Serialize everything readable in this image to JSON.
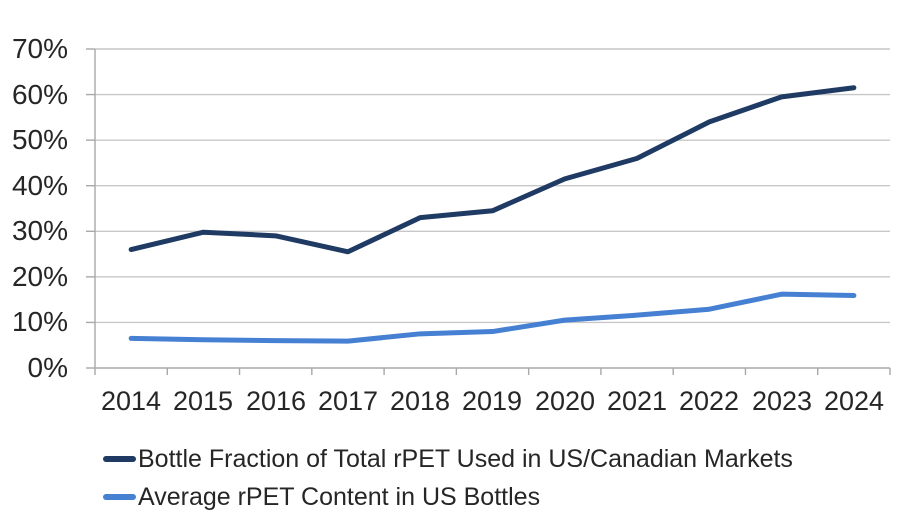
{
  "chart_data": {
    "type": "line",
    "title": "",
    "xlabel": "",
    "ylabel": "",
    "grid": true,
    "legend_position": "bottom-left",
    "ylim": [
      0,
      70
    ],
    "ytick_step": 10,
    "ytick_labels": [
      "0%",
      "10%",
      "20%",
      "30%",
      "40%",
      "50%",
      "60%",
      "70%"
    ],
    "categories": [
      "2014",
      "2015",
      "2016",
      "2017",
      "2018",
      "2019",
      "2020",
      "2021",
      "2022",
      "2023",
      "2024"
    ],
    "series": [
      {
        "name": "Bottle Fraction of Total rPET Used in US/Canadian Markets",
        "color": "#1f3a63",
        "values": [
          26,
          29.8,
          29,
          25.5,
          33,
          34.5,
          41.5,
          46,
          54,
          59.5,
          61.5
        ]
      },
      {
        "name": "Average rPET Content in US Bottles",
        "color": "#4580d2",
        "values": [
          6.5,
          6.2,
          6.0,
          5.9,
          7.5,
          8.0,
          10.5,
          11.6,
          12.9,
          16.2,
          15.9
        ]
      }
    ],
    "colors": {
      "gridline": "#c7c7c7",
      "axis": "#a8a8a8",
      "text": "#262626",
      "background": "#ffffff"
    }
  }
}
